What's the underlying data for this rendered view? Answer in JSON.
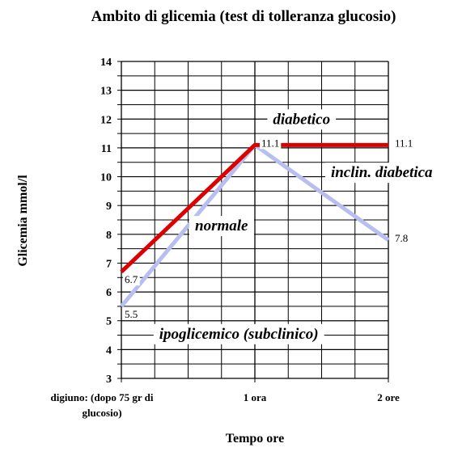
{
  "chart_data": {
    "type": "line",
    "title": "Ambito di glicemia (test di tolleranza glucosio)",
    "xlabel": "Tempo ore",
    "ylabel": "Glicemia mmol/l",
    "categories": [
      [
        "digiuno: (dopo 75 gr di",
        "glucosio)"
      ],
      [
        "1 ora"
      ],
      [
        "2 ore"
      ]
    ],
    "ylim": [
      3,
      14
    ],
    "yticks": [
      3,
      4,
      5,
      6,
      7,
      8,
      9,
      10,
      11,
      12,
      13,
      14
    ],
    "minor_y_step": 0.5,
    "grid": true,
    "series": [
      {
        "color": "#dd0000",
        "points": [
          [
            0,
            6.7
          ],
          [
            1,
            11.1
          ],
          [
            2,
            11.1
          ]
        ],
        "labels": [
          "6.7",
          "11.1",
          "11.1"
        ]
      },
      {
        "color": "#b8bff0",
        "points": [
          [
            0,
            5.5
          ],
          [
            1,
            11.1
          ],
          [
            2,
            7.8
          ]
        ],
        "labels": [
          "5.5",
          "",
          "7.8"
        ]
      }
    ],
    "region_labels": [
      {
        "text": "diabetico",
        "x": 1.35,
        "y": 12.0
      },
      {
        "text": "inclin. diabetica",
        "x": 1.95,
        "y": 10.15
      },
      {
        "text": "normale",
        "x": 0.75,
        "y": 8.3
      },
      {
        "text": "ipoglicemico (subclinico)",
        "x": 0.88,
        "y": 4.55
      }
    ]
  }
}
